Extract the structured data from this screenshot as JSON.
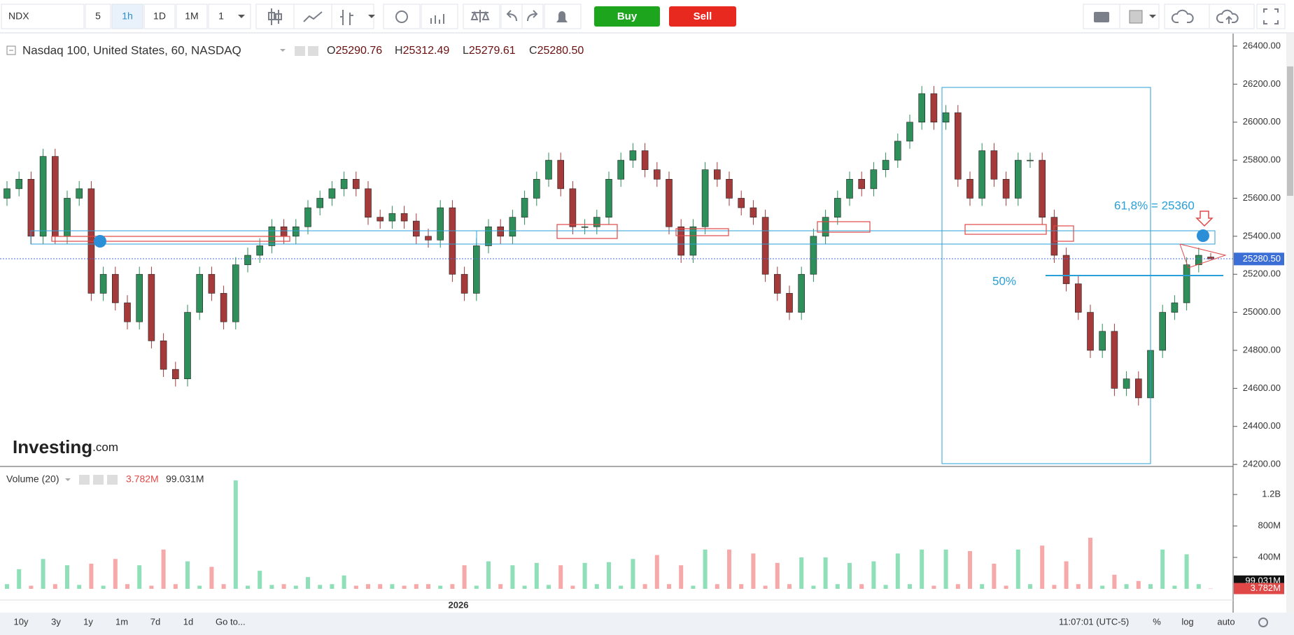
{
  "toolbar": {
    "symbol": "NDX",
    "intervals": [
      "5",
      "1h",
      "1D",
      "1M"
    ],
    "multiplier": "1",
    "buy": "Buy",
    "sell": "Sell"
  },
  "legend": {
    "title": "Nasdaq 100, United States, 60, NASDAQ",
    "ohlc": [
      {
        "key": "O",
        "value": "25290.76"
      },
      {
        "key": "H",
        "value": "25312.49"
      },
      {
        "key": "L",
        "value": "25279.61"
      },
      {
        "key": "C",
        "value": "25280.50"
      }
    ]
  },
  "watermark": {
    "brand": "Investing",
    "suffix": ".com"
  },
  "annotations": {
    "fib": "61,8% = 25360",
    "half": "50%"
  },
  "x_axis": {
    "year_label": "2026"
  },
  "bottom_bar": {
    "ranges": [
      "10y",
      "3y",
      "1y",
      "1m",
      "7d",
      "1d"
    ],
    "goto": "Go to...",
    "time": "11:07:01 (UTC-5)",
    "percent": "%",
    "log": "log",
    "auto": "auto"
  },
  "chart_data": [
    {
      "type": "candlestick",
      "up_color": "#2e8f5a",
      "down_color": "#a43a3a",
      "ylim": [
        24193,
        26466
      ],
      "yticks": [
        {
          "value": 24200,
          "label": "24200.00"
        },
        {
          "value": 24400,
          "label": "24400.00"
        },
        {
          "value": 24600,
          "label": "24600.00"
        },
        {
          "value": 24800,
          "label": "24800.00"
        },
        {
          "value": 25000,
          "label": "25000.00"
        },
        {
          "value": 25200,
          "label": "25200.00"
        },
        {
          "value": 25400,
          "label": "25400.00"
        },
        {
          "value": 25600,
          "label": "25600.00"
        },
        {
          "value": 25800,
          "label": "25800.00"
        },
        {
          "value": 26000,
          "label": "26000.00"
        },
        {
          "value": 26200,
          "label": "26200.00"
        },
        {
          "value": 26400,
          "label": "26400.00"
        }
      ],
      "last_price": {
        "value": 25280.5,
        "label": "25280.50"
      },
      "candles": [
        [
          25600,
          25690,
          25560,
          25650
        ],
        [
          25650,
          25740,
          25610,
          25700
        ],
        [
          25700,
          25740,
          25360,
          25400
        ],
        [
          25400,
          25860,
          25360,
          25820
        ],
        [
          25820,
          25860,
          25360,
          25400
        ],
        [
          25400,
          25640,
          25360,
          25600
        ],
        [
          25600,
          25690,
          25560,
          25650
        ],
        [
          25650,
          25690,
          25060,
          25100
        ],
        [
          25100,
          25240,
          25060,
          25200
        ],
        [
          25200,
          25240,
          25010,
          25050
        ],
        [
          25050,
          25090,
          24910,
          24950
        ],
        [
          24950,
          25240,
          24910,
          25200
        ],
        [
          25200,
          25240,
          24810,
          24850
        ],
        [
          24850,
          24890,
          24660,
          24700
        ],
        [
          24700,
          24740,
          24610,
          24650
        ],
        [
          24650,
          25040,
          24610,
          25000
        ],
        [
          25000,
          25240,
          24960,
          25200
        ],
        [
          25200,
          25240,
          25060,
          25100
        ],
        [
          25100,
          25140,
          24910,
          24950
        ],
        [
          24950,
          25290,
          24910,
          25250
        ],
        [
          25250,
          25340,
          25210,
          25300
        ],
        [
          25300,
          25390,
          25260,
          25350
        ],
        [
          25350,
          25490,
          25310,
          25450
        ],
        [
          25450,
          25490,
          25360,
          25400
        ],
        [
          25400,
          25490,
          25360,
          25450
        ],
        [
          25450,
          25590,
          25410,
          25550
        ],
        [
          25550,
          25640,
          25510,
          25600
        ],
        [
          25600,
          25690,
          25560,
          25650
        ],
        [
          25650,
          25740,
          25610,
          25700
        ],
        [
          25700,
          25740,
          25610,
          25650
        ],
        [
          25650,
          25690,
          25460,
          25500
        ],
        [
          25500,
          25540,
          25440,
          25480
        ],
        [
          25480,
          25560,
          25440,
          25520
        ],
        [
          25520,
          25560,
          25440,
          25480
        ],
        [
          25480,
          25520,
          25360,
          25400
        ],
        [
          25400,
          25440,
          25340,
          25380
        ],
        [
          25380,
          25590,
          25340,
          25550
        ],
        [
          25550,
          25590,
          25160,
          25200
        ],
        [
          25200,
          25240,
          25060,
          25100
        ],
        [
          25100,
          25390,
          25060,
          25350
        ],
        [
          25350,
          25490,
          25310,
          25450
        ],
        [
          25450,
          25490,
          25360,
          25400
        ],
        [
          25400,
          25540,
          25360,
          25500
        ],
        [
          25500,
          25640,
          25460,
          25600
        ],
        [
          25600,
          25740,
          25560,
          25700
        ],
        [
          25700,
          25840,
          25660,
          25800
        ],
        [
          25800,
          25840,
          25610,
          25650
        ],
        [
          25650,
          25690,
          25410,
          25450
        ],
        [
          25450,
          25490,
          25410,
          25450
        ],
        [
          25450,
          25540,
          25410,
          25500
        ],
        [
          25500,
          25740,
          25460,
          25700
        ],
        [
          25700,
          25840,
          25660,
          25800
        ],
        [
          25800,
          25890,
          25760,
          25850
        ],
        [
          25850,
          25890,
          25710,
          25750
        ],
        [
          25750,
          25790,
          25660,
          25700
        ],
        [
          25700,
          25740,
          25410,
          25450
        ],
        [
          25450,
          25490,
          25260,
          25300
        ],
        [
          25300,
          25490,
          25260,
          25450
        ],
        [
          25450,
          25790,
          25410,
          25750
        ],
        [
          25750,
          25790,
          25660,
          25700
        ],
        [
          25700,
          25740,
          25560,
          25600
        ],
        [
          25600,
          25640,
          25510,
          25550
        ],
        [
          25550,
          25590,
          25460,
          25500
        ],
        [
          25500,
          25540,
          25160,
          25200
        ],
        [
          25200,
          25240,
          25060,
          25100
        ],
        [
          25100,
          25140,
          24960,
          25000
        ],
        [
          25000,
          25240,
          24960,
          25200
        ],
        [
          25200,
          25440,
          25160,
          25400
        ],
        [
          25400,
          25540,
          25360,
          25500
        ],
        [
          25500,
          25640,
          25460,
          25600
        ],
        [
          25600,
          25740,
          25560,
          25700
        ],
        [
          25700,
          25740,
          25610,
          25650
        ],
        [
          25650,
          25790,
          25610,
          25750
        ],
        [
          25750,
          25840,
          25710,
          25800
        ],
        [
          25800,
          25940,
          25760,
          25900
        ],
        [
          25900,
          26040,
          25860,
          26000
        ],
        [
          26000,
          26190,
          25960,
          26150
        ],
        [
          26150,
          26190,
          25960,
          26000
        ],
        [
          26000,
          26090,
          25960,
          26050
        ],
        [
          26050,
          26090,
          25660,
          25700
        ],
        [
          25700,
          25740,
          25560,
          25600
        ],
        [
          25600,
          25890,
          25560,
          25850
        ],
        [
          25850,
          25890,
          25660,
          25700
        ],
        [
          25700,
          25740,
          25560,
          25600
        ],
        [
          25600,
          25840,
          25560,
          25800
        ],
        [
          25800,
          25840,
          25760,
          25800
        ],
        [
          25800,
          25840,
          25460,
          25500
        ],
        [
          25500,
          25540,
          25260,
          25300
        ],
        [
          25300,
          25340,
          25110,
          25150
        ],
        [
          25150,
          25190,
          24960,
          25000
        ],
        [
          25000,
          25040,
          24760,
          24800
        ],
        [
          24800,
          24940,
          24760,
          24900
        ],
        [
          24900,
          24940,
          24560,
          24600
        ],
        [
          24600,
          24690,
          24560,
          24650
        ],
        [
          24650,
          24690,
          24510,
          24550
        ],
        [
          24550,
          24840,
          24510,
          24800
        ],
        [
          24800,
          25040,
          24760,
          25000
        ],
        [
          25000,
          25090,
          24960,
          25050
        ],
        [
          25050,
          25290,
          25010,
          25250
        ],
        [
          25250,
          25340,
          25210,
          25300
        ],
        [
          25290.76,
          25312.49,
          25279.61,
          25280.5
        ]
      ]
    },
    {
      "type": "bar",
      "title": "Volume (20)",
      "up_color": "#8fe0b8",
      "down_color": "#f7a8a8",
      "ylim": [
        0,
        1530
      ],
      "yticks": [
        {
          "value": 400,
          "label": "400M"
        },
        {
          "value": 800,
          "label": "800M"
        },
        {
          "value": 1200,
          "label": "1.2B"
        }
      ],
      "last": {
        "value": 3.782,
        "label": "3.782M"
      },
      "ma": {
        "value": 99.031,
        "label": "99.031M"
      },
      "values": [
        60,
        250,
        40,
        380,
        60,
        300,
        50,
        320,
        40,
        380,
        60,
        300,
        40,
        500,
        60,
        350,
        40,
        280,
        60,
        1380,
        40,
        230,
        50,
        60,
        40,
        150,
        50,
        60,
        170,
        40,
        60,
        60,
        60,
        40,
        60,
        60,
        40,
        60,
        300,
        40,
        350,
        60,
        300,
        40,
        330,
        50,
        300,
        40,
        330,
        60,
        340,
        40,
        380,
        60,
        430,
        60,
        300,
        40,
        500,
        60,
        500,
        60,
        450,
        40,
        330,
        60,
        400,
        40,
        400,
        60,
        330,
        60,
        350,
        50,
        450,
        60,
        500,
        40,
        500,
        60,
        480,
        60,
        320,
        40,
        500,
        60,
        550,
        50,
        350,
        60,
        650,
        40,
        180,
        60,
        100,
        60,
        500,
        40,
        440,
        60,
        3.782
      ]
    }
  ]
}
